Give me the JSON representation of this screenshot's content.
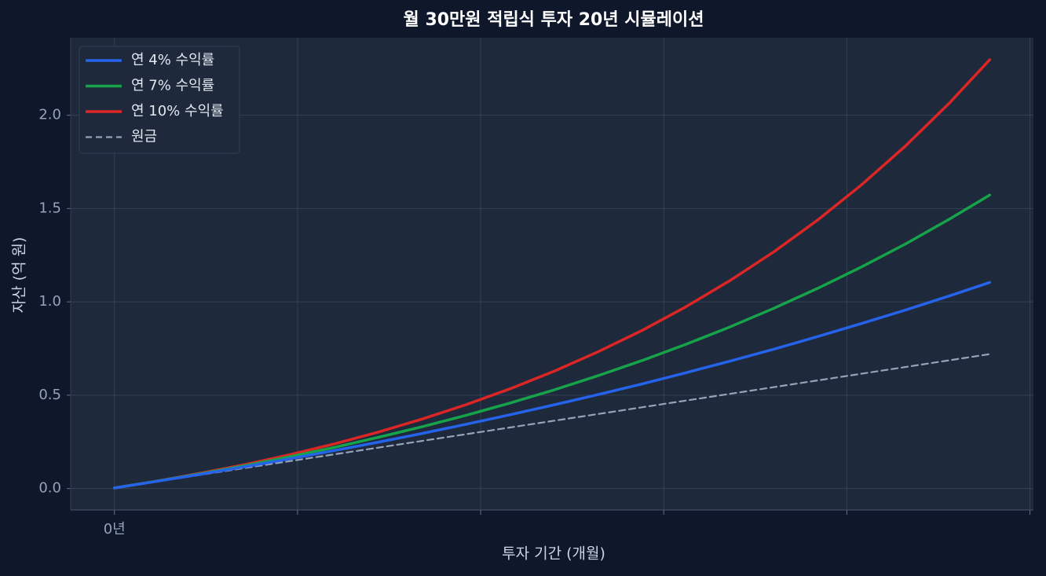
{
  "chart_data": {
    "type": "line",
    "title": "월 30만원 적립식 투자 20년 시뮬레이션",
    "x_label": "투자 기간 (개월)",
    "y_label": "자산 (억 원)",
    "x": [
      0,
      12,
      24,
      36,
      48,
      60,
      72,
      84,
      96,
      108,
      120,
      132,
      144,
      156,
      168,
      180,
      192,
      204,
      216,
      228,
      239
    ],
    "series": [
      {
        "name": "연 4% 수익률",
        "color": "#2563eb",
        "width": 3.5,
        "values": [
          0.003,
          0.04,
          0.078,
          0.118,
          0.16,
          0.203,
          0.248,
          0.295,
          0.344,
          0.395,
          0.448,
          0.503,
          0.56,
          0.62,
          0.682,
          0.746,
          0.814,
          0.884,
          0.956,
          1.032,
          1.104
        ]
      },
      {
        "name": "연 7% 수익률",
        "color": "#16a34a",
        "width": 3.5,
        "values": [
          0.003,
          0.041,
          0.081,
          0.124,
          0.171,
          0.22,
          0.274,
          0.331,
          0.392,
          0.458,
          0.528,
          0.604,
          0.685,
          0.772,
          0.865,
          0.965,
          1.072,
          1.187,
          1.31,
          1.443,
          1.572
        ]
      },
      {
        "name": "연 10% 수익률",
        "color": "#dc2626",
        "width": 3.5,
        "values": [
          0.003,
          0.041,
          0.084,
          0.13,
          0.182,
          0.239,
          0.302,
          0.372,
          0.449,
          0.534,
          0.628,
          0.732,
          0.846,
          0.973,
          1.113,
          1.267,
          1.438,
          1.627,
          1.835,
          2.065,
          2.297
        ]
      },
      {
        "name": "원금",
        "color": "#94a3b8",
        "width": 2.2,
        "dashed": true,
        "values": [
          0.003,
          0.039,
          0.075,
          0.111,
          0.147,
          0.183,
          0.219,
          0.255,
          0.291,
          0.327,
          0.363,
          0.399,
          0.435,
          0.471,
          0.507,
          0.543,
          0.579,
          0.615,
          0.651,
          0.687,
          0.72
        ]
      }
    ],
    "xlim": [
      -11.95,
      250.95
    ],
    "xticks": [
      {
        "value": 0,
        "label": "0년"
      },
      {
        "value": 50,
        "label": null
      },
      {
        "value": 100,
        "label": null
      },
      {
        "value": 150,
        "label": null
      },
      {
        "value": 200,
        "label": null
      },
      {
        "value": 250,
        "label": null
      }
    ],
    "ylim": [
      -0.115,
      2.415
    ],
    "yticks": [
      {
        "value": 0,
        "label": "0.0"
      },
      {
        "value": 0.5,
        "label": "0.5"
      },
      {
        "value": 1,
        "label": "1.0"
      },
      {
        "value": 1.5,
        "label": "1.5"
      },
      {
        "value": 2,
        "label": "2.0"
      }
    ],
    "grid": true,
    "legend": "upper-left"
  }
}
